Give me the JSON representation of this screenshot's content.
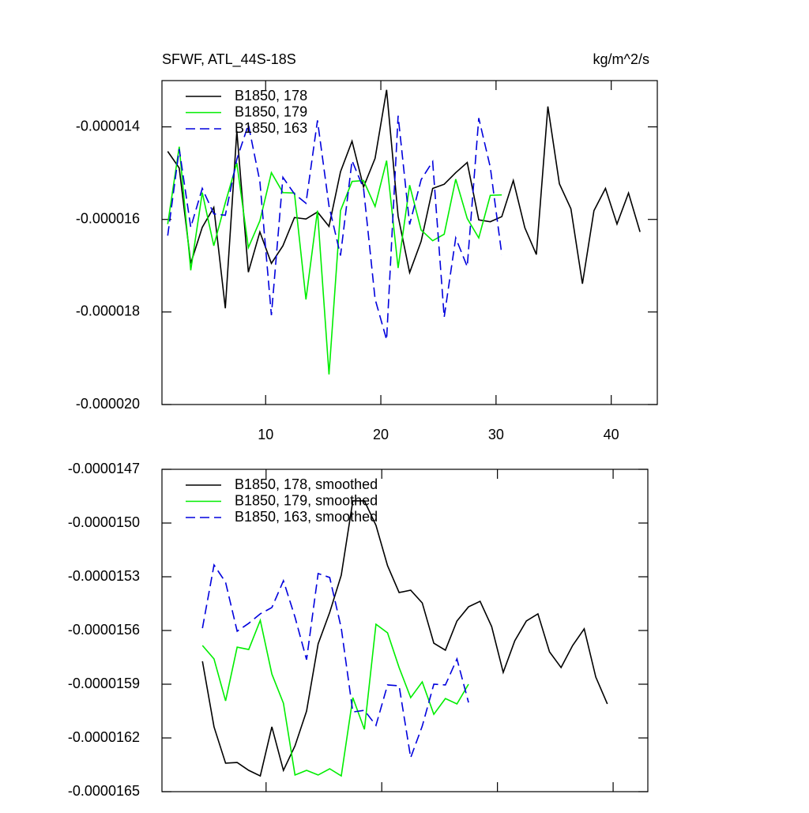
{
  "chart_data": [
    {
      "type": "line",
      "title": "SFWF, ATL_44S-18S",
      "units": "kg/m^2/s",
      "xlim": [
        1,
        44
      ],
      "xticks": [
        10,
        20,
        30,
        40
      ],
      "xtick_labels": true,
      "ylim": [
        -2e-05,
        -1.3e-05
      ],
      "yticks": [
        -1.4e-05,
        -1.6e-05,
        -1.8e-05,
        {
          "value": -2e-05,
          "label": "-0.000020"
        }
      ],
      "legend": "upper left",
      "series": [
        {
          "name": "B1850, 178",
          "color": "#000000",
          "dash": "solid",
          "x": [
            1.5,
            2.5,
            3.5,
            4.5,
            5.5,
            6.5,
            7.5,
            8.5,
            9.5,
            10.5,
            11.5,
            12.5,
            13.5,
            14.5,
            15.5,
            16.5,
            17.5,
            18.5,
            19.5,
            20.5,
            21.5,
            22.5,
            23.5,
            24.5,
            25.5,
            26.5,
            27.5,
            28.5,
            29.5,
            30.5,
            31.5,
            32.5,
            33.5,
            34.5,
            35.5,
            36.5,
            37.5,
            38.5,
            39.5,
            40.5,
            41.5,
            42.5
          ],
          "values": [
            -1.453e-05,
            -1.489e-05,
            -1.695e-05,
            -1.617e-05,
            -1.574e-05,
            -1.792e-05,
            -1.409e-05,
            -1.714e-05,
            -1.627e-05,
            -1.695e-05,
            -1.657e-05,
            -1.596e-05,
            -1.599e-05,
            -1.584e-05,
            -1.615e-05,
            -1.497e-05,
            -1.431e-05,
            -1.53e-05,
            -1.468e-05,
            -1.32e-05,
            -1.593e-05,
            -1.715e-05,
            -1.647e-05,
            -1.533e-05,
            -1.524e-05,
            -1.499e-05,
            -1.477e-05,
            -1.601e-05,
            -1.605e-05,
            -1.594e-05,
            -1.516e-05,
            -1.618e-05,
            -1.676e-05,
            -1.356e-05,
            -1.523e-05,
            -1.577e-05,
            -1.739e-05,
            -1.581e-05,
            -1.533e-05,
            -1.61e-05,
            -1.543e-05,
            -1.627e-05
          ]
        },
        {
          "name": "B1850, 179",
          "color": "#00ee00",
          "dash": "solid",
          "x": [
            1.5,
            2.5,
            3.5,
            4.5,
            5.5,
            6.5,
            7.5,
            8.5,
            9.5,
            10.5,
            11.5,
            12.5,
            13.5,
            14.5,
            15.5,
            16.5,
            17.5,
            18.5,
            19.5,
            20.5,
            21.5,
            22.5,
            23.5,
            24.5,
            25.5,
            26.5,
            27.5,
            28.5,
            29.5,
            30.5
          ],
          "values": [
            -1.61e-05,
            -1.443e-05,
            -1.71e-05,
            -1.542e-05,
            -1.657e-05,
            -1.564e-05,
            -1.478e-05,
            -1.661e-05,
            -1.603e-05,
            -1.499e-05,
            -1.542e-05,
            -1.543e-05,
            -1.773e-05,
            -1.581e-05,
            -1.935e-05,
            -1.581e-05,
            -1.518e-05,
            -1.516e-05,
            -1.572e-05,
            -1.473e-05,
            -1.705e-05,
            -1.526e-05,
            -1.623e-05,
            -1.646e-05,
            -1.632e-05,
            -1.513e-05,
            -1.598e-05,
            -1.64e-05,
            -1.548e-05,
            -1.547e-05
          ]
        },
        {
          "name": "B1850, 163",
          "color": "#0000dd",
          "dash": "dashed",
          "x": [
            1.5,
            2.5,
            3.5,
            4.5,
            5.5,
            6.5,
            7.5,
            8.5,
            9.5,
            10.5,
            11.5,
            12.5,
            13.5,
            14.5,
            15.5,
            16.5,
            17.5,
            18.5,
            19.5,
            20.5,
            21.5,
            22.5,
            23.5,
            24.5,
            25.5,
            26.5,
            27.5,
            28.5,
            29.5,
            30.5
          ],
          "values": [
            -1.635e-05,
            -1.448e-05,
            -1.617e-05,
            -1.533e-05,
            -1.588e-05,
            -1.591e-05,
            -1.47e-05,
            -1.395e-05,
            -1.518e-05,
            -1.807e-05,
            -1.509e-05,
            -1.545e-05,
            -1.565e-05,
            -1.386e-05,
            -1.571e-05,
            -1.678e-05,
            -1.473e-05,
            -1.533e-05,
            -1.772e-05,
            -1.86e-05,
            -1.376e-05,
            -1.611e-05,
            -1.514e-05,
            -1.475e-05,
            -1.811e-05,
            -1.64e-05,
            -1.702e-05,
            -1.381e-05,
            -1.487e-05,
            -1.676e-05
          ]
        }
      ]
    },
    {
      "type": "line",
      "xlim": [
        1,
        43
      ],
      "xticks": [
        10,
        20,
        30,
        40
      ],
      "xtick_labels": false,
      "ylim": [
        -1.65e-05,
        -1.47e-05
      ],
      "yticks": [
        -1.47e-05,
        {
          "value": -1.5e-05,
          "label": "-0.0000150"
        },
        -1.53e-05,
        -1.56e-05,
        -1.59e-05,
        -1.62e-05,
        -1.65e-05
      ],
      "legend": "upper left",
      "series": [
        {
          "name": "B1850, 178, smoothed",
          "color": "#000000",
          "dash": "solid",
          "x": [
            4.5,
            5.5,
            6.5,
            7.5,
            8.5,
            9.5,
            10.5,
            11.5,
            12.5,
            13.5,
            14.5,
            15.5,
            16.5,
            17.5,
            18.5,
            19.5,
            20.5,
            21.5,
            22.5,
            23.5,
            24.5,
            25.5,
            26.5,
            27.5,
            28.5,
            29.5,
            30.5,
            31.5,
            32.5,
            33.5,
            34.5,
            35.5,
            36.5,
            37.5,
            38.5,
            39.5
          ],
          "values": [
            -1.5772e-05,
            -1.6138e-05,
            -1.6341e-05,
            -1.6337e-05,
            -1.6381e-05,
            -1.6412e-05,
            -1.6138e-05,
            -1.6381e-05,
            -1.6244e-05,
            -1.605e-05,
            -1.5675e-05,
            -1.5499e-05,
            -1.5291e-05,
            -1.4876e-05,
            -1.4876e-05,
            -1.5013e-05,
            -1.5238e-05,
            -1.5388e-05,
            -1.5375e-05,
            -1.5446e-05,
            -1.5671e-05,
            -1.571e-05,
            -1.5547e-05,
            -1.5468e-05,
            -1.5437e-05,
            -1.5578e-05,
            -1.5834e-05,
            -1.5657e-05,
            -1.5547e-05,
            -1.5507e-05,
            -1.5719e-05,
            -1.5807e-05,
            -1.5684e-05,
            -1.5591e-05,
            -1.586e-05,
            -1.601e-05
          ]
        },
        {
          "name": "B1850, 179, smoothed",
          "color": "#00ee00",
          "dash": "solid",
          "x": [
            4.5,
            5.5,
            6.5,
            7.5,
            8.5,
            9.5,
            10.5,
            11.5,
            12.5,
            13.5,
            14.5,
            15.5,
            16.5,
            17.5,
            18.5,
            19.5,
            20.5,
            21.5,
            22.5,
            23.5,
            24.5,
            25.5,
            26.5,
            27.5
          ],
          "values": [
            -1.5684e-05,
            -1.5759e-05,
            -1.5993e-05,
            -1.5693e-05,
            -1.5706e-05,
            -1.5543e-05,
            -1.5843e-05,
            -1.6006e-05,
            -1.6407e-05,
            -1.6381e-05,
            -1.6407e-05,
            -1.6372e-05,
            -1.6412e-05,
            -1.5975e-05,
            -1.6152e-05,
            -1.5565e-05,
            -1.5613e-05,
            -1.5807e-05,
            -1.5975e-05,
            -1.5887e-05,
            -1.6068e-05,
            -1.598e-05,
            -1.601e-05,
            -1.59e-05
          ]
        },
        {
          "name": "B1850, 163, smoothed",
          "color": "#0000dd",
          "dash": "dashed",
          "x": [
            4.5,
            5.5,
            6.5,
            7.5,
            8.5,
            9.5,
            10.5,
            11.5,
            12.5,
            13.5,
            14.5,
            15.5,
            16.5,
            17.5,
            18.5,
            19.5,
            20.5,
            21.5,
            22.5,
            23.5,
            24.5,
            25.5,
            26.5,
            27.5
          ],
          "values": [
            -1.5587e-05,
            -1.5234e-05,
            -1.5331e-05,
            -1.5604e-05,
            -1.556e-05,
            -1.5507e-05,
            -1.5472e-05,
            -1.5322e-05,
            -1.5525e-05,
            -1.5763e-05,
            -1.5282e-05,
            -1.5304e-05,
            -1.5587e-05,
            -1.6055e-05,
            -1.6046e-05,
            -1.613e-05,
            -1.5904e-05,
            -1.5909e-05,
            -1.631e-05,
            -1.6134e-05,
            -1.59e-05,
            -1.5904e-05,
            -1.5759e-05,
            -1.6002e-05
          ]
        }
      ]
    }
  ]
}
